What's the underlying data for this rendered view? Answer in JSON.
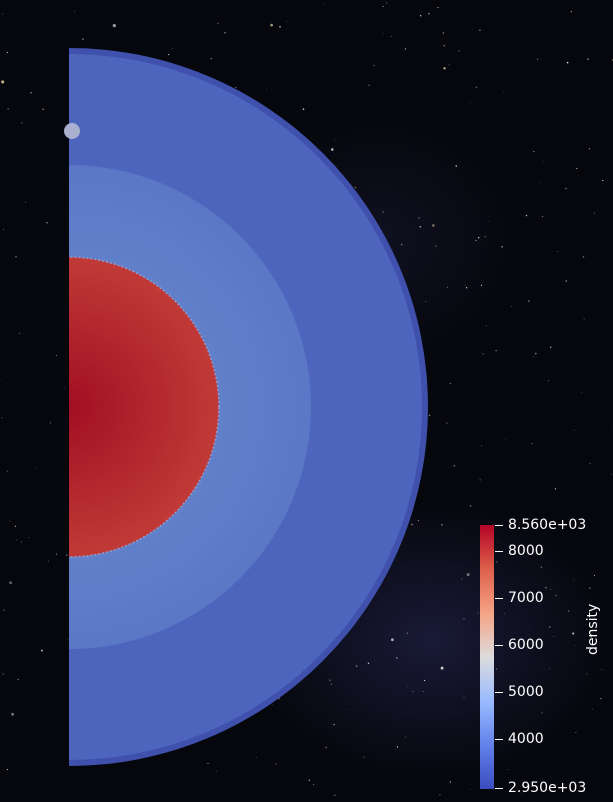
{
  "view": {
    "background": "starfield",
    "colormap": "Cool to Warm",
    "colors": {
      "background": "#06070d",
      "crust": "#3f51ad",
      "upper_mantle": "#4d65bc",
      "lower_mantle": "#5d7bc8",
      "core_center": "#a10f22",
      "core_edge": "#c13a37",
      "marker": "#a9b1cf"
    }
  },
  "colorbar": {
    "title": "density",
    "max_label": "8.560e+03",
    "min_label": "2.950e+03",
    "tick_labels": [
      "8000",
      "7000",
      "6000",
      "5000",
      "4000"
    ],
    "range": [
      2950,
      8560
    ],
    "ticks": [
      8000,
      7000,
      6000,
      5000,
      4000
    ],
    "gradient": [
      "#b40426",
      "#dd5f4b",
      "#f6a385",
      "#dddcdc",
      "#9abbff",
      "#6282ea",
      "#3b4cc0"
    ]
  }
}
